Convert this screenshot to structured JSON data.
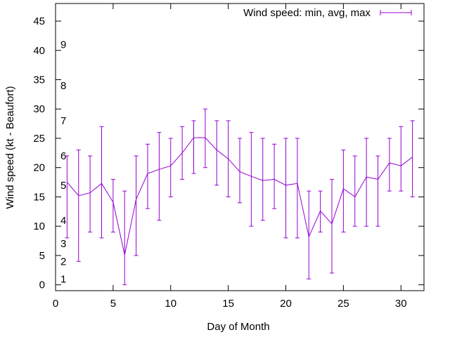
{
  "chart_data": {
    "type": "line",
    "title": "",
    "xlabel": "Day of Month",
    "ylabel": "Wind speed (kt - Beaufort)",
    "xlim": [
      0,
      32
    ],
    "ylim": [
      -1,
      48
    ],
    "x_ticks": [
      0,
      5,
      10,
      15,
      20,
      25,
      30
    ],
    "y_ticks": [
      0,
      5,
      10,
      15,
      20,
      25,
      30,
      35,
      40,
      45
    ],
    "grid": false,
    "legend": "top-right",
    "series": [
      {
        "name": "Wind speed: min, avg, max",
        "color": "#9400d3",
        "x": [
          1,
          2,
          3,
          4,
          5,
          6,
          7,
          8,
          9,
          10,
          11,
          12,
          13,
          14,
          15,
          16,
          17,
          18,
          19,
          20,
          21,
          22,
          23,
          24,
          25,
          26,
          27,
          28,
          29,
          30,
          31
        ],
        "min": [
          8,
          4,
          9,
          8,
          9,
          0,
          5,
          13,
          11,
          15,
          18,
          19,
          20,
          17,
          15,
          14,
          10,
          11,
          13,
          8,
          8,
          1,
          9,
          2,
          9,
          10,
          10,
          10,
          16,
          16,
          15
        ],
        "avg": [
          17.5,
          15.2,
          15.7,
          17.3,
          14.1,
          5.1,
          14.6,
          19.0,
          19.7,
          20.3,
          22.5,
          25.1,
          25.1,
          23.0,
          21.5,
          19.3,
          18.5,
          17.8,
          18.0,
          17.0,
          17.3,
          8.2,
          12.6,
          10.4,
          16.4,
          15.0,
          18.4,
          18.0,
          20.8,
          20.3,
          21.8
        ],
        "max": [
          22,
          23,
          22,
          27,
          18,
          16,
          22,
          24,
          26,
          25,
          27,
          28,
          30,
          28,
          28,
          25,
          26,
          25,
          24,
          25,
          25,
          16,
          16,
          18,
          23,
          22,
          25,
          22,
          25,
          27,
          28
        ]
      }
    ],
    "annotations": [
      {
        "text": "1",
        "y": 1
      },
      {
        "text": "2",
        "y": 4
      },
      {
        "text": "3",
        "y": 7
      },
      {
        "text": "4",
        "y": 11
      },
      {
        "text": "5",
        "y": 17
      },
      {
        "text": "6",
        "y": 22
      },
      {
        "text": "7",
        "y": 28
      },
      {
        "text": "8",
        "y": 34
      },
      {
        "text": "9",
        "y": 41
      }
    ]
  }
}
